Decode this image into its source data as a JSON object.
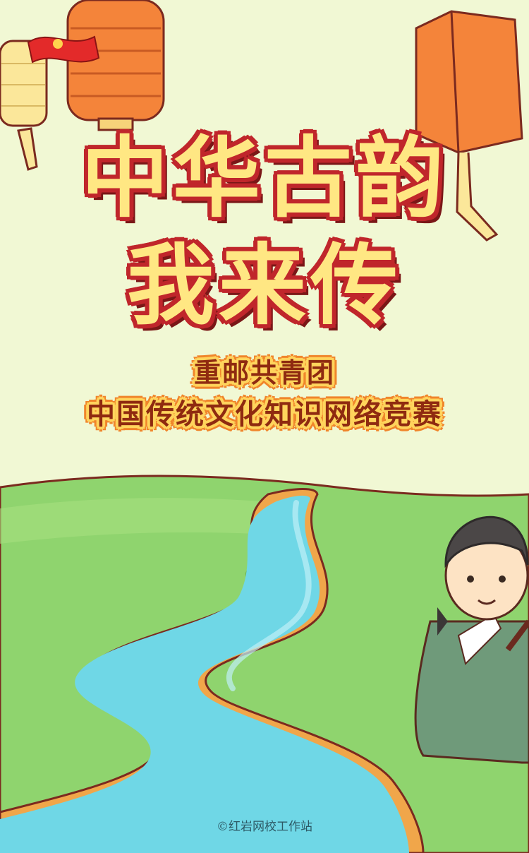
{
  "poster": {
    "title_line1": "中华古韵",
    "title_line2": "我来传",
    "subtitle_line1": "重邮共青团",
    "subtitle_line2": "中国传统文化知识网络竞赛",
    "footer": "©红岩网校工作站"
  },
  "icons": [
    "league-flag-icon",
    "paper-lantern-icon",
    "scholar-character-icon"
  ],
  "colors": {
    "background": "#f1f8d4",
    "title_fill": "#ffe783",
    "title_outline": "#c0262b",
    "subtitle_text": "#8f2a10",
    "subtitle_outline": "#f0852b",
    "grass": "#8fd46e",
    "river": "#6fd7e6",
    "riverbank": "#f0a64a"
  }
}
